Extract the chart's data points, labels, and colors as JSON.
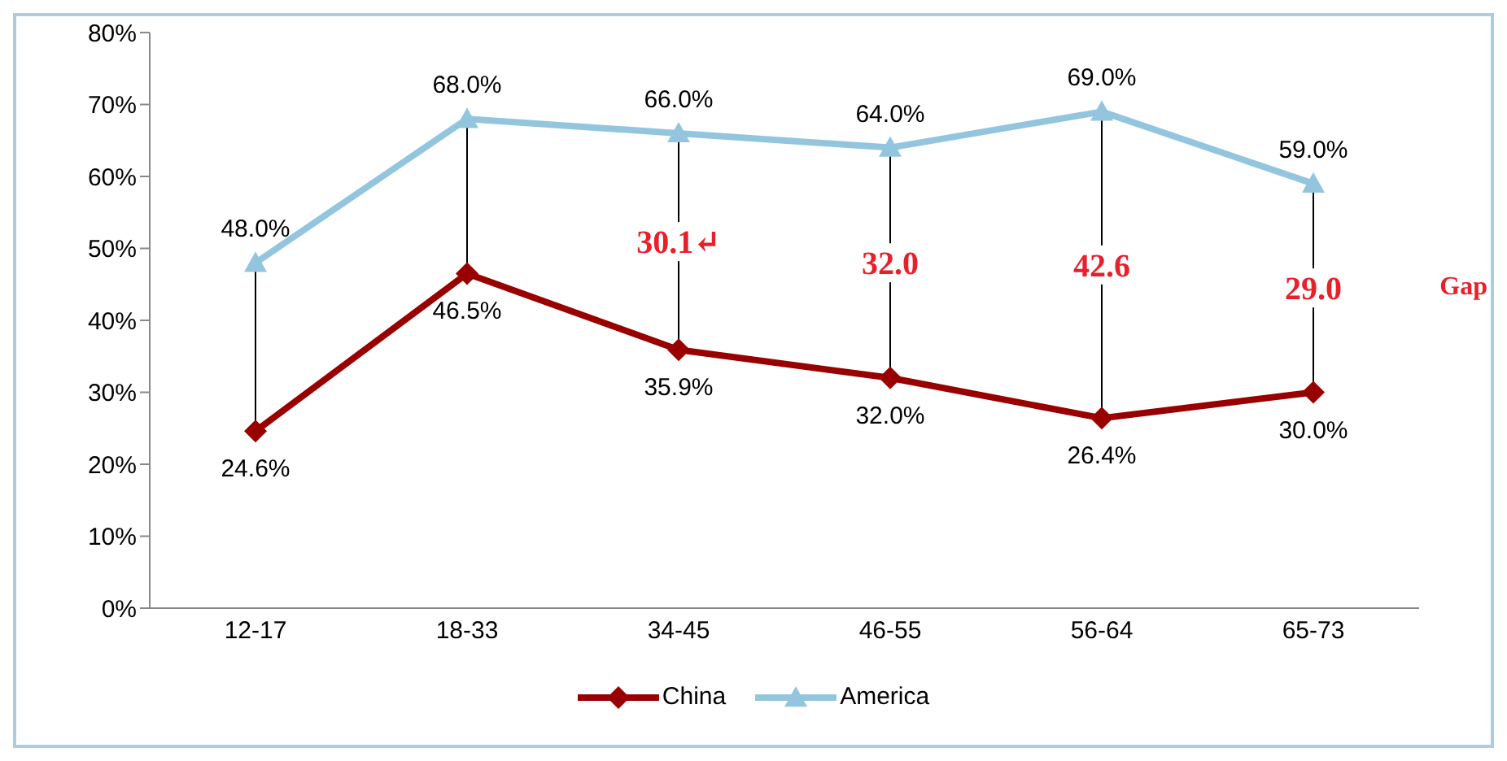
{
  "chart_data": {
    "type": "line",
    "categories": [
      "12-17",
      "18-33",
      "34-45",
      "46-55",
      "56-64",
      "65-73"
    ],
    "series": [
      {
        "name": "China",
        "color": "#990000",
        "marker": "diamond",
        "values": [
          24.6,
          46.5,
          35.9,
          32.0,
          26.4,
          30.0
        ],
        "value_labels": [
          "24.6%",
          "46.5%",
          "35.9%",
          "32.0%",
          "26.4%",
          "30.0%"
        ]
      },
      {
        "name": "America",
        "color": "#93c6de",
        "marker": "triangle",
        "values": [
          48.0,
          68.0,
          66.0,
          64.0,
          69.0,
          59.0
        ],
        "value_labels": [
          "48.0%",
          "68.0%",
          "66.0%",
          "64.0%",
          "69.0%",
          "59.0%"
        ]
      }
    ],
    "ylim": [
      0,
      80
    ],
    "yticks": [
      {
        "value": 0,
        "label": "0%"
      },
      {
        "value": 10,
        "label": "10%"
      },
      {
        "value": 20,
        "label": "20%"
      },
      {
        "value": 30,
        "label": "30%"
      },
      {
        "value": 40,
        "label": "40%"
      },
      {
        "value": 50,
        "label": "50%"
      },
      {
        "value": 60,
        "label": "60%"
      },
      {
        "value": 70,
        "label": "70%"
      },
      {
        "value": 80,
        "label": "80%"
      }
    ],
    "annotations": [
      "30.1↵",
      "32.0",
      "42.6",
      "29.0",
      "Gap"
    ],
    "grid": false,
    "legend": "bottom",
    "line_style": "solid"
  }
}
